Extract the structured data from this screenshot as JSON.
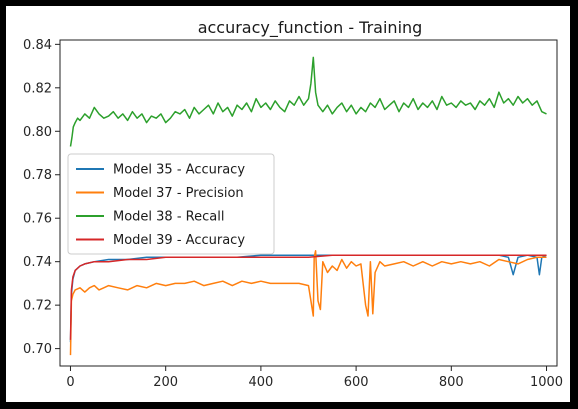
{
  "chart_data": {
    "type": "line",
    "title": "accuracy_function - Training",
    "xlabel": "",
    "ylabel": "",
    "xlim": [
      -22,
      1022
    ],
    "ylim": [
      0.692,
      0.842
    ],
    "xticks": [
      0,
      200,
      400,
      600,
      800,
      1000
    ],
    "yticks": [
      0.7,
      0.72,
      0.74,
      0.76,
      0.78,
      0.8,
      0.82,
      0.84
    ],
    "grid": false,
    "legend_position": "center-left",
    "series": [
      {
        "name": "Model 35 - Accuracy",
        "color": "#1f77b4",
        "x": [
          0,
          2,
          5,
          10,
          20,
          30,
          50,
          80,
          120,
          160,
          200,
          250,
          300,
          350,
          400,
          450,
          500,
          550,
          600,
          650,
          700,
          750,
          800,
          850,
          900,
          920,
          930,
          940,
          960,
          980,
          985,
          990,
          1000
        ],
        "y": [
          0.703,
          0.725,
          0.732,
          0.736,
          0.738,
          0.739,
          0.74,
          0.741,
          0.741,
          0.742,
          0.742,
          0.742,
          0.742,
          0.742,
          0.743,
          0.743,
          0.743,
          0.743,
          0.743,
          0.743,
          0.743,
          0.743,
          0.743,
          0.743,
          0.743,
          0.742,
          0.734,
          0.742,
          0.743,
          0.742,
          0.734,
          0.742,
          0.743
        ]
      },
      {
        "name": "Model 37 - Precision",
        "color": "#ff7f0e",
        "x": [
          0,
          2,
          5,
          10,
          20,
          30,
          40,
          50,
          60,
          70,
          80,
          100,
          120,
          140,
          160,
          180,
          200,
          220,
          240,
          260,
          280,
          300,
          320,
          340,
          360,
          380,
          400,
          420,
          440,
          460,
          480,
          500,
          505,
          510,
          512,
          515,
          520,
          525,
          530,
          540,
          550,
          560,
          570,
          580,
          590,
          600,
          610,
          620,
          625,
          630,
          635,
          640,
          650,
          660,
          680,
          700,
          720,
          740,
          760,
          780,
          800,
          820,
          840,
          860,
          880,
          900,
          920,
          940,
          960,
          980,
          1000
        ],
        "y": [
          0.697,
          0.722,
          0.725,
          0.727,
          0.728,
          0.726,
          0.728,
          0.729,
          0.727,
          0.728,
          0.729,
          0.728,
          0.727,
          0.729,
          0.728,
          0.73,
          0.729,
          0.73,
          0.73,
          0.731,
          0.729,
          0.73,
          0.731,
          0.729,
          0.731,
          0.73,
          0.731,
          0.73,
          0.73,
          0.73,
          0.73,
          0.729,
          0.722,
          0.715,
          0.742,
          0.745,
          0.722,
          0.718,
          0.74,
          0.735,
          0.738,
          0.736,
          0.741,
          0.737,
          0.74,
          0.738,
          0.739,
          0.72,
          0.715,
          0.74,
          0.716,
          0.735,
          0.74,
          0.738,
          0.739,
          0.74,
          0.738,
          0.74,
          0.738,
          0.74,
          0.739,
          0.74,
          0.739,
          0.74,
          0.738,
          0.741,
          0.74,
          0.739,
          0.741,
          0.742,
          0.742
        ]
      },
      {
        "name": "Model 38 - Recall",
        "color": "#2ca02c",
        "x": [
          0,
          3,
          6,
          10,
          15,
          20,
          30,
          40,
          50,
          60,
          70,
          80,
          90,
          100,
          110,
          120,
          130,
          140,
          150,
          160,
          170,
          180,
          190,
          200,
          210,
          220,
          230,
          240,
          250,
          260,
          270,
          280,
          290,
          300,
          310,
          320,
          330,
          340,
          350,
          360,
          370,
          380,
          390,
          400,
          410,
          420,
          430,
          440,
          450,
          460,
          470,
          480,
          490,
          500,
          505,
          510,
          515,
          520,
          530,
          540,
          550,
          560,
          570,
          580,
          590,
          600,
          610,
          620,
          630,
          640,
          650,
          660,
          670,
          680,
          690,
          700,
          710,
          720,
          730,
          740,
          750,
          760,
          770,
          780,
          790,
          800,
          810,
          820,
          830,
          840,
          850,
          860,
          870,
          880,
          890,
          900,
          910,
          920,
          930,
          940,
          950,
          960,
          970,
          980,
          990,
          1000
        ],
        "y": [
          0.793,
          0.797,
          0.802,
          0.804,
          0.806,
          0.805,
          0.808,
          0.806,
          0.811,
          0.808,
          0.806,
          0.807,
          0.809,
          0.806,
          0.808,
          0.805,
          0.809,
          0.806,
          0.808,
          0.804,
          0.807,
          0.806,
          0.808,
          0.804,
          0.806,
          0.809,
          0.808,
          0.81,
          0.806,
          0.811,
          0.808,
          0.81,
          0.812,
          0.808,
          0.813,
          0.809,
          0.811,
          0.807,
          0.812,
          0.81,
          0.813,
          0.809,
          0.815,
          0.811,
          0.813,
          0.81,
          0.814,
          0.811,
          0.809,
          0.814,
          0.812,
          0.816,
          0.812,
          0.815,
          0.822,
          0.834,
          0.818,
          0.812,
          0.809,
          0.812,
          0.808,
          0.811,
          0.813,
          0.809,
          0.812,
          0.808,
          0.811,
          0.809,
          0.813,
          0.811,
          0.815,
          0.81,
          0.812,
          0.814,
          0.809,
          0.813,
          0.811,
          0.815,
          0.81,
          0.813,
          0.811,
          0.814,
          0.81,
          0.816,
          0.812,
          0.813,
          0.811,
          0.814,
          0.812,
          0.813,
          0.81,
          0.814,
          0.812,
          0.815,
          0.811,
          0.818,
          0.813,
          0.815,
          0.812,
          0.816,
          0.813,
          0.815,
          0.812,
          0.814,
          0.809,
          0.808
        ]
      },
      {
        "name": "Model 39 - Accuracy",
        "color": "#d62728",
        "x": [
          0,
          2,
          5,
          10,
          20,
          30,
          50,
          80,
          120,
          160,
          200,
          250,
          300,
          350,
          400,
          450,
          500,
          550,
          600,
          650,
          700,
          750,
          800,
          850,
          900,
          950,
          1000
        ],
        "y": [
          0.704,
          0.727,
          0.733,
          0.736,
          0.738,
          0.739,
          0.74,
          0.74,
          0.741,
          0.741,
          0.742,
          0.742,
          0.742,
          0.742,
          0.742,
          0.742,
          0.742,
          0.743,
          0.743,
          0.743,
          0.743,
          0.743,
          0.743,
          0.743,
          0.743,
          0.743,
          0.743
        ]
      }
    ]
  }
}
